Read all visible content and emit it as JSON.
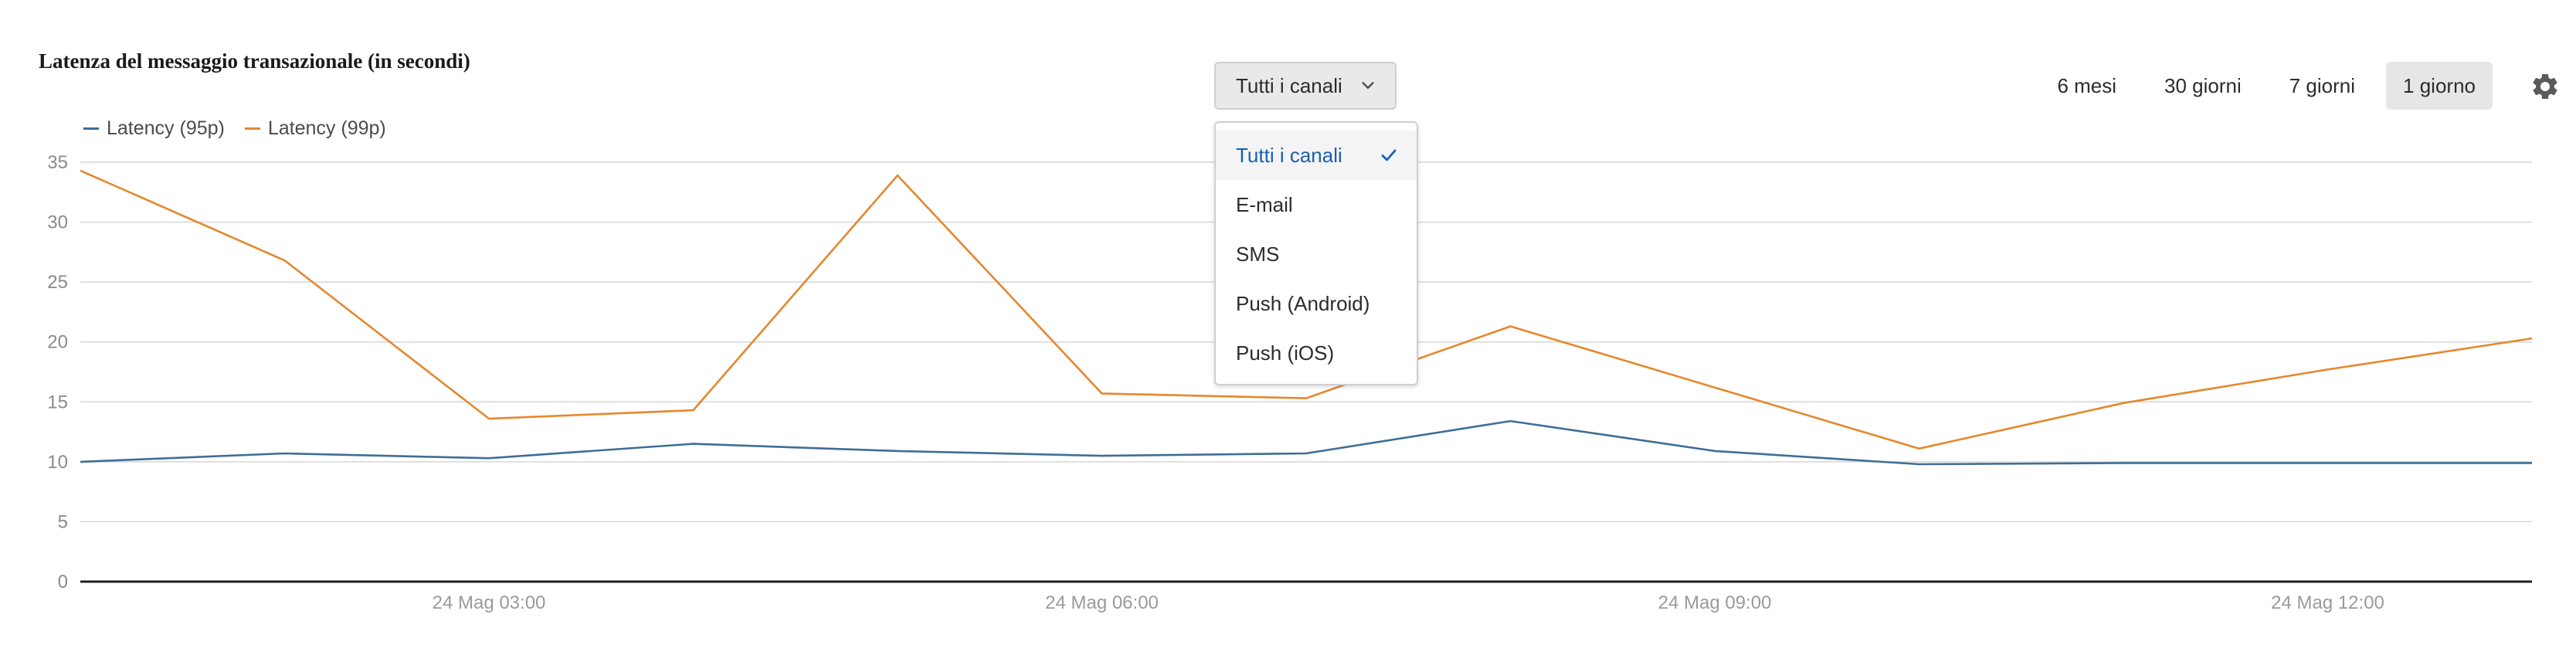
{
  "title": "Latenza del messaggio transazionale (in secondi)",
  "channel_selector": {
    "selected_label": "Tutti i canali",
    "options": [
      "Tutti i canali",
      "E-mail",
      "SMS",
      "Push (Android)",
      "Push (iOS)"
    ],
    "selected_index": 0
  },
  "time_ranges": {
    "options": [
      "6 mesi",
      "30 giorni",
      "7 giorni",
      "1 giorno"
    ],
    "active_index": 3
  },
  "colors": {
    "p95": "#3f6e96",
    "p99": "#e4882e",
    "accent": "#1a5fb0"
  },
  "icons": {
    "chevron": "chevron-down-icon",
    "check": "check-icon",
    "settings": "gear-icon"
  },
  "chart_data": {
    "type": "line",
    "x": [
      "24 Mag 01:00",
      "24 Mag 02:00",
      "24 Mag 03:00",
      "24 Mag 04:00",
      "24 Mag 05:00",
      "24 Mag 06:00",
      "24 Mag 07:00",
      "24 Mag 08:00",
      "24 Mag 09:00",
      "24 Mag 10:00",
      "24 Mag 11:00",
      "24 Mag 12:00",
      "24 Mag 13:00"
    ],
    "x_ticks": [
      "24 Mag 03:00",
      "24 Mag 06:00",
      "24 Mag  09:00",
      "24 Mag 12:00"
    ],
    "series": [
      {
        "name": "Latency (95p)",
        "values": [
          10.0,
          10.7,
          10.3,
          11.5,
          10.9,
          10.5,
          10.7,
          13.4,
          10.9,
          9.8,
          9.9,
          9.9,
          9.9
        ]
      },
      {
        "name": "Latency (99p)",
        "values": [
          34.3,
          26.8,
          13.6,
          14.3,
          33.9,
          15.7,
          15.3,
          21.3,
          16.2,
          11.1,
          14.9,
          17.7,
          20.3
        ]
      }
    ],
    "ylim": [
      0,
      35
    ],
    "yticks": [
      0,
      5,
      10,
      15,
      20,
      25,
      30,
      35
    ],
    "grid": true,
    "legend": "top-left"
  }
}
